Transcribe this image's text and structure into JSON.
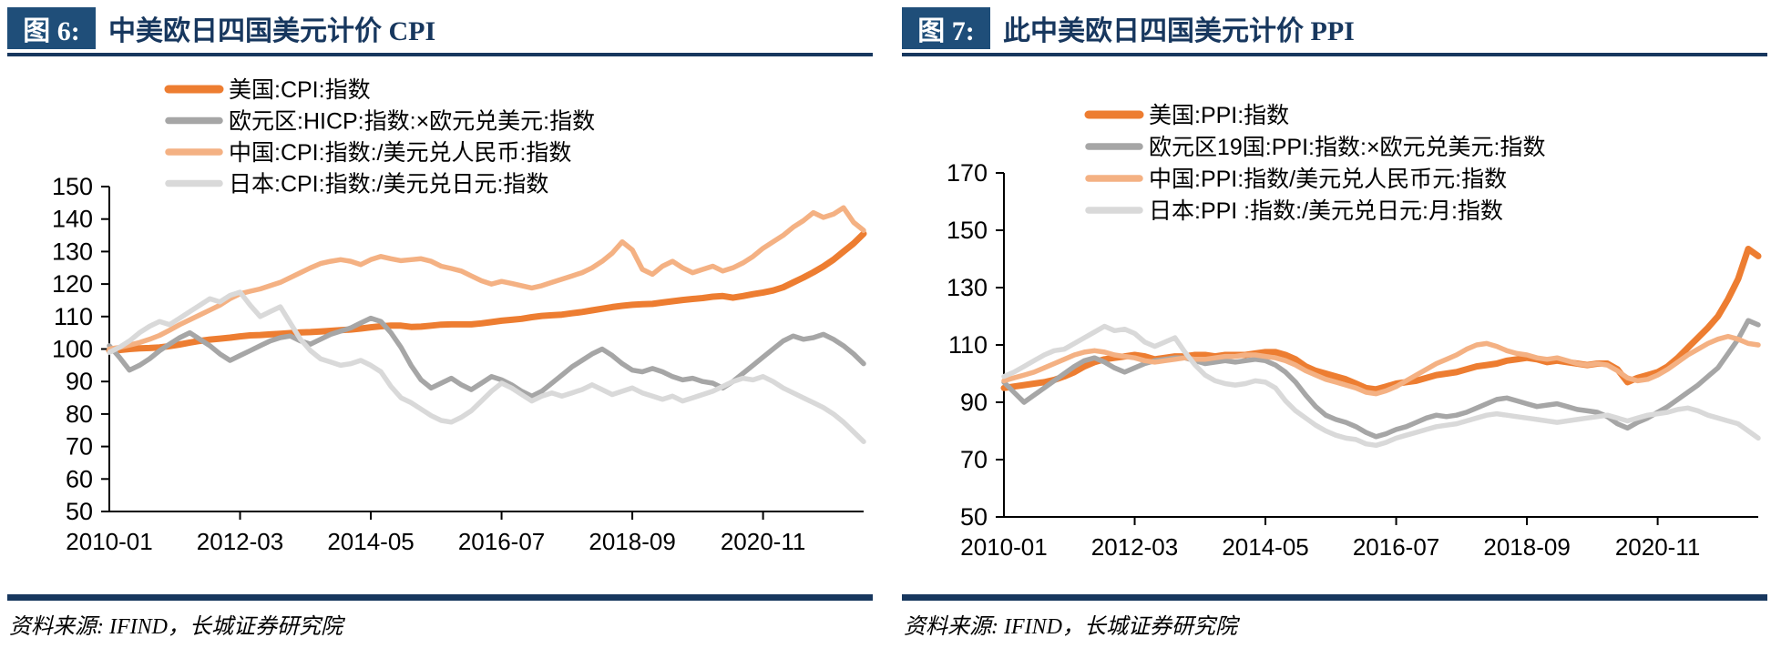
{
  "colors": {
    "navy_box": "#1F4E79",
    "navy_text": "#17375E",
    "us_orange": "#ED7D31",
    "eu_gray": "#A6A6A6",
    "cn_peach": "#F4B183",
    "jp_lightgray": "#D9D9D9",
    "axis_black": "#000000"
  },
  "panels": [
    {
      "figure_label": "图 6:",
      "title": "中美欧日四国美元计价 CPI",
      "source": "资料来源: IFIND，长城证券研究院"
    },
    {
      "figure_label": "图 7:",
      "title": "此中美欧日四国美元计价 PPI",
      "source": "资料来源: IFIND，长城证券研究院"
    }
  ],
  "chart_data": [
    {
      "type": "line",
      "title": "中美欧日四国美元计价 CPI",
      "x_range": [
        "2010-01",
        "2022-07"
      ],
      "sample_interval_months": 2,
      "x_tick_labels": [
        "2010-01",
        "2012-03",
        "2014-05",
        "2016-07",
        "2018-09",
        "2020-11"
      ],
      "x_tick_indices": [
        0,
        13,
        26,
        39,
        52,
        65
      ],
      "ylim": [
        50,
        150
      ],
      "ytick_step": 10,
      "grid": false,
      "legend_position": "top-inside",
      "series": [
        {
          "name": "美国:CPI:指数",
          "color": "#ED7D31",
          "width": 7,
          "values": [
            99.5,
            99.7,
            100.0,
            100.2,
            100.3,
            100.5,
            100.9,
            101.4,
            102.0,
            102.5,
            102.9,
            103.2,
            103.5,
            103.9,
            104.2,
            104.3,
            104.5,
            104.7,
            104.9,
            105.1,
            105.2,
            105.4,
            105.6,
            105.8,
            106.0,
            106.3,
            106.7,
            107.0,
            107.2,
            107.2,
            106.8,
            106.9,
            107.2,
            107.5,
            107.6,
            107.6,
            107.6,
            107.9,
            108.3,
            108.7,
            109.0,
            109.3,
            109.8,
            110.2,
            110.4,
            110.6,
            111.0,
            111.4,
            111.9,
            112.4,
            112.9,
            113.3,
            113.6,
            113.8,
            113.9,
            114.3,
            114.7,
            115.1,
            115.4,
            115.7,
            116.1,
            116.3,
            115.8,
            116.3,
            116.9,
            117.4,
            118.0,
            119.0,
            120.5,
            122.0,
            123.6,
            125.4,
            127.5,
            130.0,
            132.5,
            135.5
          ]
        },
        {
          "name": "欧元区:HICP:指数:×欧元兑美元:指数",
          "color": "#A6A6A6",
          "width": 5.5,
          "values": [
            101.0,
            97.5,
            93.5,
            95.0,
            97.0,
            99.5,
            101.5,
            103.5,
            105.0,
            103.0,
            101.0,
            98.5,
            96.5,
            98.0,
            99.5,
            101.0,
            102.5,
            103.5,
            104.0,
            102.5,
            101.5,
            103.0,
            104.5,
            105.5,
            106.5,
            108.0,
            109.5,
            108.5,
            105.0,
            100.5,
            95.0,
            90.5,
            88.0,
            89.5,
            91.0,
            89.0,
            87.5,
            89.5,
            91.5,
            90.5,
            89.0,
            87.0,
            85.5,
            87.0,
            89.5,
            92.0,
            94.5,
            96.5,
            98.5,
            100.0,
            98.0,
            95.5,
            93.5,
            93.0,
            94.0,
            93.0,
            91.5,
            90.5,
            91.0,
            90.0,
            89.5,
            88.0,
            90.0,
            92.5,
            95.0,
            97.5,
            100.0,
            102.5,
            104.0,
            103.0,
            103.5,
            104.5,
            103.0,
            101.0,
            98.5,
            95.5
          ]
        },
        {
          "name": "中国:CPI:指数:/美元兑人民币:指数",
          "color": "#F4B183",
          "width": 5.5,
          "values": [
            100.0,
            100.5,
            101.2,
            102.0,
            103.0,
            104.2,
            105.8,
            107.5,
            109.0,
            110.5,
            112.0,
            113.5,
            115.5,
            117.0,
            117.8,
            118.5,
            119.5,
            120.5,
            122.0,
            123.5,
            125.0,
            126.3,
            127.0,
            127.5,
            127.0,
            126.0,
            127.5,
            128.5,
            127.8,
            127.2,
            127.5,
            127.8,
            127.0,
            125.5,
            124.8,
            124.0,
            122.5,
            121.0,
            120.0,
            120.8,
            120.2,
            119.5,
            118.8,
            119.5,
            120.5,
            121.5,
            122.5,
            123.5,
            125.0,
            127.0,
            129.5,
            133.0,
            130.5,
            124.5,
            123.0,
            125.5,
            127.0,
            125.0,
            123.5,
            124.5,
            125.5,
            124.0,
            125.0,
            126.5,
            128.5,
            131.0,
            133.0,
            135.0,
            137.5,
            139.5,
            142.0,
            140.5,
            141.5,
            143.5,
            139.0,
            136.5
          ]
        },
        {
          "name": "日本:CPI:指数:/美元兑日元:指数",
          "color": "#D9D9D9",
          "width": 5.5,
          "values": [
            99.0,
            100.5,
            102.5,
            105.0,
            107.0,
            108.5,
            107.5,
            109.5,
            111.5,
            113.5,
            115.5,
            114.5,
            116.5,
            117.5,
            113.5,
            110.0,
            111.5,
            113.0,
            108.0,
            103.0,
            99.5,
            97.0,
            96.0,
            95.0,
            95.5,
            96.5,
            95.0,
            93.0,
            88.5,
            85.0,
            83.5,
            81.5,
            79.5,
            78.0,
            77.5,
            79.0,
            81.0,
            84.0,
            87.0,
            89.5,
            88.0,
            86.0,
            84.0,
            85.5,
            86.5,
            85.5,
            86.5,
            87.5,
            89.0,
            87.5,
            86.0,
            87.0,
            88.0,
            86.5,
            85.5,
            84.5,
            85.5,
            84.0,
            85.0,
            86.0,
            87.0,
            88.5,
            90.0,
            91.0,
            90.5,
            91.5,
            90.0,
            88.0,
            86.5,
            85.0,
            83.5,
            82.0,
            80.0,
            77.5,
            74.5,
            71.5
          ]
        }
      ]
    },
    {
      "type": "line",
      "title": "此中美欧日四国美元计价 PPI",
      "x_range": [
        "2010-01",
        "2022-07"
      ],
      "sample_interval_months": 2,
      "x_tick_labels": [
        "2010-01",
        "2012-03",
        "2014-05",
        "2016-07",
        "2018-09",
        "2020-11"
      ],
      "x_tick_indices": [
        0,
        13,
        26,
        39,
        52,
        65
      ],
      "ylim": [
        50,
        170
      ],
      "ytick_step": 20,
      "grid": false,
      "legend_position": "top-inside",
      "series": [
        {
          "name": "美国:PPI:指数",
          "color": "#ED7D31",
          "width": 7,
          "values": [
            95.0,
            95.5,
            96.0,
            96.5,
            97.0,
            97.8,
            99.0,
            100.5,
            102.5,
            104.0,
            105.0,
            105.5,
            106.0,
            106.5,
            106.0,
            105.0,
            105.5,
            106.0,
            106.0,
            106.5,
            106.5,
            106.0,
            106.5,
            106.5,
            106.5,
            107.0,
            107.5,
            107.5,
            106.5,
            105.0,
            102.5,
            101.0,
            100.0,
            99.0,
            98.0,
            96.5,
            95.0,
            94.5,
            95.5,
            96.5,
            97.0,
            97.5,
            98.5,
            99.5,
            100.0,
            100.5,
            101.5,
            102.5,
            103.0,
            103.5,
            104.5,
            105.0,
            105.5,
            105.0,
            104.0,
            104.5,
            104.0,
            103.5,
            103.0,
            103.5,
            103.5,
            101.5,
            97.0,
            98.5,
            99.5,
            100.5,
            102.5,
            105.5,
            109.0,
            112.5,
            116.0,
            120.0,
            126.0,
            133.0,
            143.5,
            141.0
          ]
        },
        {
          "name": "欧元区19国:PPI:指数:×欧元兑美元:指数",
          "color": "#A6A6A6",
          "width": 5.5,
          "values": [
            97.0,
            93.5,
            90.0,
            92.5,
            95.0,
            97.5,
            100.0,
            102.5,
            104.5,
            105.5,
            104.0,
            102.0,
            100.5,
            102.0,
            103.5,
            104.5,
            105.0,
            105.5,
            105.5,
            104.5,
            103.5,
            104.0,
            104.5,
            104.0,
            104.5,
            105.0,
            104.5,
            103.0,
            100.5,
            97.0,
            92.5,
            88.5,
            85.5,
            84.0,
            83.0,
            81.5,
            79.5,
            78.0,
            79.0,
            80.5,
            81.5,
            83.0,
            84.5,
            85.5,
            85.0,
            85.5,
            86.5,
            88.0,
            89.5,
            91.0,
            91.5,
            90.5,
            89.5,
            88.5,
            89.0,
            89.5,
            88.5,
            87.5,
            87.0,
            86.5,
            85.0,
            82.5,
            81.0,
            83.0,
            84.5,
            86.5,
            88.5,
            91.0,
            93.5,
            96.0,
            99.0,
            102.0,
            107.0,
            112.0,
            118.5,
            117.0
          ]
        },
        {
          "name": "中国:PPI:指数/美元兑人民币元:指数",
          "color": "#F4B183",
          "width": 5.5,
          "values": [
            97.5,
            98.5,
            99.5,
            100.5,
            102.0,
            103.5,
            105.0,
            106.5,
            107.5,
            108.0,
            107.5,
            106.5,
            106.0,
            105.5,
            104.5,
            104.0,
            104.5,
            105.0,
            105.5,
            105.0,
            105.0,
            105.5,
            106.0,
            106.0,
            106.5,
            106.5,
            106.0,
            105.5,
            104.5,
            103.0,
            101.0,
            99.5,
            98.0,
            97.0,
            96.0,
            95.0,
            93.5,
            93.0,
            94.0,
            95.5,
            97.5,
            99.5,
            101.5,
            103.5,
            105.0,
            106.5,
            108.5,
            110.0,
            110.5,
            109.5,
            108.0,
            107.0,
            106.5,
            105.5,
            105.0,
            105.5,
            104.5,
            103.5,
            103.0,
            103.5,
            103.0,
            101.0,
            98.5,
            97.5,
            98.0,
            99.5,
            101.5,
            104.0,
            106.5,
            108.5,
            110.5,
            112.0,
            113.0,
            112.0,
            110.5,
            110.0
          ]
        },
        {
          "name": "日本:PPI :指数:/美元兑日元:月:指数",
          "color": "#D9D9D9",
          "width": 5.5,
          "values": [
            99.0,
            100.5,
            102.5,
            104.5,
            106.5,
            108.0,
            108.5,
            110.5,
            112.5,
            114.5,
            116.5,
            115.0,
            115.5,
            114.0,
            111.0,
            109.5,
            111.0,
            112.5,
            107.5,
            103.0,
            99.5,
            97.5,
            96.5,
            96.0,
            96.5,
            97.5,
            97.0,
            95.0,
            90.5,
            87.0,
            84.5,
            82.0,
            80.0,
            78.5,
            77.5,
            77.0,
            75.5,
            75.0,
            76.0,
            77.5,
            78.5,
            79.5,
            80.5,
            81.5,
            82.0,
            82.5,
            83.5,
            84.5,
            85.5,
            86.0,
            85.5,
            85.0,
            84.5,
            84.0,
            83.5,
            83.0,
            83.5,
            84.0,
            84.5,
            85.0,
            85.5,
            84.5,
            83.5,
            84.5,
            85.5,
            86.0,
            86.5,
            87.5,
            88.0,
            87.0,
            85.5,
            84.5,
            83.5,
            82.5,
            80.0,
            77.5
          ]
        }
      ]
    }
  ]
}
